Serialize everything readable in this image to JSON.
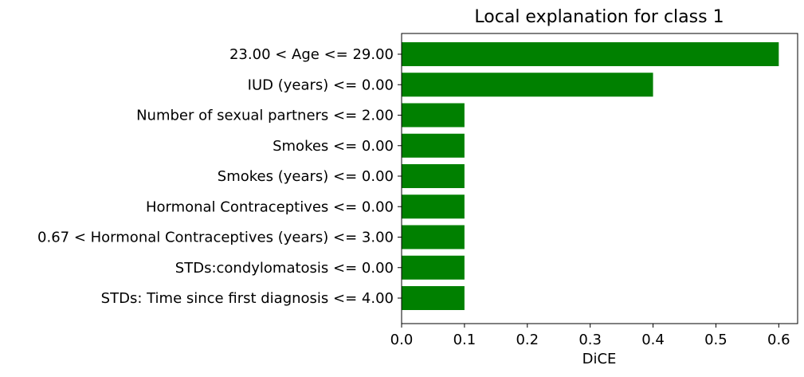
{
  "chart_data": {
    "type": "bar",
    "orientation": "horizontal",
    "title": "Local explanation for class 1",
    "xlabel": "DiCE",
    "ylabel": "",
    "xlim": [
      0,
      0.63
    ],
    "xticks": [
      0.0,
      0.1,
      0.2,
      0.3,
      0.4,
      0.5,
      0.6
    ],
    "xtick_labels": [
      "0.0",
      "0.1",
      "0.2",
      "0.3",
      "0.4",
      "0.5",
      "0.6"
    ],
    "grid": false,
    "bar_color": "#008000",
    "categories": [
      "23.00 < Age <= 29.00",
      "IUD (years) <= 0.00",
      "Number of sexual partners <= 2.00",
      "Smokes <= 0.00",
      "Smokes (years) <= 0.00",
      "Hormonal Contraceptives <= 0.00",
      "0.67 < Hormonal Contraceptives (years) <= 3.00",
      "STDs:condylomatosis <= 0.00",
      "STDs: Time since first diagnosis <= 4.00"
    ],
    "values": [
      0.6,
      0.4,
      0.1,
      0.1,
      0.1,
      0.1,
      0.1,
      0.1,
      0.1
    ]
  }
}
